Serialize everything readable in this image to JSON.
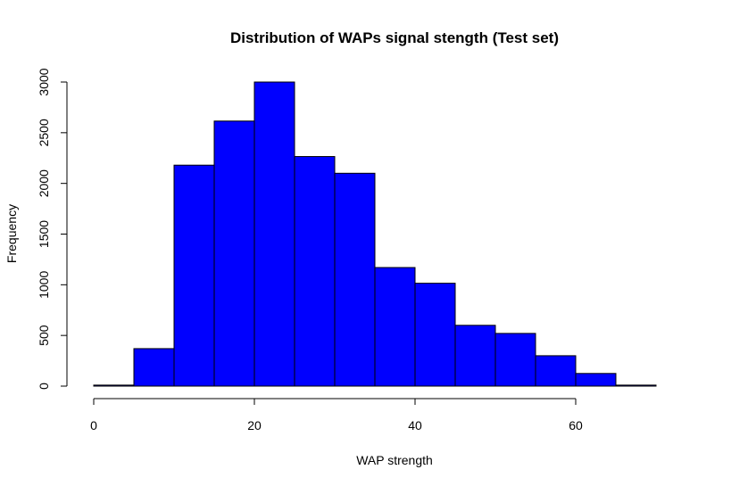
{
  "chart_data": {
    "type": "bar",
    "title": "Distribution of WAPs signal stength (Test set)",
    "xlabel": "WAP strength",
    "ylabel": "Frequency",
    "bar_color": "#0000ff",
    "edge_color": "#000000",
    "bin_width": 5,
    "bins": [
      {
        "start": 0,
        "end": 5,
        "count": 10
      },
      {
        "start": 5,
        "end": 10,
        "count": 370
      },
      {
        "start": 10,
        "end": 15,
        "count": 2180
      },
      {
        "start": 15,
        "end": 20,
        "count": 2615
      },
      {
        "start": 20,
        "end": 25,
        "count": 3000
      },
      {
        "start": 25,
        "end": 30,
        "count": 2265
      },
      {
        "start": 30,
        "end": 35,
        "count": 2100
      },
      {
        "start": 35,
        "end": 40,
        "count": 1170
      },
      {
        "start": 40,
        "end": 45,
        "count": 1015
      },
      {
        "start": 45,
        "end": 50,
        "count": 600
      },
      {
        "start": 50,
        "end": 55,
        "count": 520
      },
      {
        "start": 55,
        "end": 60,
        "count": 300
      },
      {
        "start": 60,
        "end": 65,
        "count": 125
      },
      {
        "start": 65,
        "end": 70,
        "count": 10
      }
    ],
    "x_ticks": [
      0,
      20,
      40,
      60
    ],
    "y_ticks": [
      0,
      500,
      1000,
      1500,
      2000,
      2500,
      3000
    ],
    "xlim": [
      0,
      70
    ],
    "ylim": [
      0,
      3000
    ],
    "grid": false
  }
}
